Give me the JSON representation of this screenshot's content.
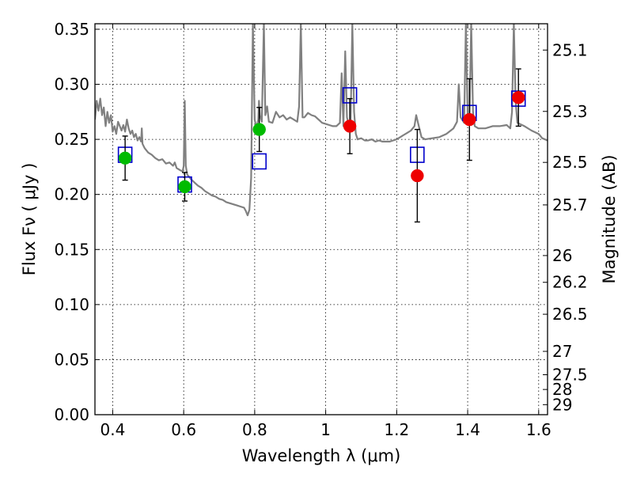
{
  "chart_data": {
    "type": "scatter",
    "title": "",
    "xlabel": "Wavelength  λ (μm)",
    "ylabel": "Flux  Fν  ( μJy )",
    "y2label": "Magnitude (AB)",
    "xlim": [
      0.35,
      1.625
    ],
    "ylim": [
      0.0,
      0.355
    ],
    "grid": true,
    "legend": "none",
    "x_ticks": [
      0.4,
      0.6,
      0.8,
      1.0,
      1.2,
      1.4,
      1.6
    ],
    "x_tick_labels": [
      "0.4",
      "0.6",
      "0.8",
      "1",
      "1.2",
      "1.4",
      "1.6"
    ],
    "y_ticks": [
      0.0,
      0.05,
      0.1,
      0.15,
      0.2,
      0.25,
      0.3,
      0.35
    ],
    "y_tick_labels": [
      "0.00",
      "0.05",
      "0.10",
      "0.15",
      "0.20",
      "0.25",
      "0.30",
      "0.35"
    ],
    "mag_ticks": [
      {
        "label": "25.1",
        "flux": 0.3311
      },
      {
        "label": "25.3",
        "flux": 0.2754
      },
      {
        "label": "25.5",
        "flux": 0.2291
      },
      {
        "label": "25.7",
        "flux": 0.1905
      },
      {
        "label": "26",
        "flux": 0.1445
      },
      {
        "label": "26.2",
        "flux": 0.1202
      },
      {
        "label": "26.5",
        "flux": 0.0912
      },
      {
        "label": "27",
        "flux": 0.0575
      },
      {
        "label": "27.5",
        "flux": 0.0363
      },
      {
        "label": "28",
        "flux": 0.0229
      },
      {
        "label": "29",
        "flux": 0.0091
      }
    ],
    "colors": {
      "template": "#808080",
      "model_box": "#0000cc",
      "obs_green": "#00bb00",
      "obs_red": "#ee0000",
      "errorbar": "#000000"
    },
    "series": [
      {
        "kind": "template-spectrum",
        "points": [
          [
            0.35,
            0.268
          ],
          [
            0.355,
            0.285
          ],
          [
            0.36,
            0.276
          ],
          [
            0.365,
            0.287
          ],
          [
            0.37,
            0.272
          ],
          [
            0.375,
            0.279
          ],
          [
            0.38,
            0.262
          ],
          [
            0.385,
            0.275
          ],
          [
            0.39,
            0.265
          ],
          [
            0.395,
            0.272
          ],
          [
            0.4,
            0.257
          ],
          [
            0.405,
            0.262
          ],
          [
            0.41,
            0.255
          ],
          [
            0.415,
            0.266
          ],
          [
            0.42,
            0.262
          ],
          [
            0.425,
            0.258
          ],
          [
            0.43,
            0.263
          ],
          [
            0.435,
            0.257
          ],
          [
            0.44,
            0.268
          ],
          [
            0.445,
            0.26
          ],
          [
            0.45,
            0.255
          ],
          [
            0.455,
            0.258
          ],
          [
            0.46,
            0.252
          ],
          [
            0.465,
            0.255
          ],
          [
            0.47,
            0.249
          ],
          [
            0.475,
            0.252
          ],
          [
            0.48,
            0.248
          ],
          [
            0.482,
            0.26
          ],
          [
            0.484,
            0.246
          ],
          [
            0.49,
            0.242
          ],
          [
            0.5,
            0.238
          ],
          [
            0.51,
            0.236
          ],
          [
            0.52,
            0.233
          ],
          [
            0.53,
            0.231
          ],
          [
            0.54,
            0.232
          ],
          [
            0.55,
            0.228
          ],
          [
            0.56,
            0.229
          ],
          [
            0.57,
            0.226
          ],
          [
            0.575,
            0.229
          ],
          [
            0.58,
            0.224
          ],
          [
            0.59,
            0.222
          ],
          [
            0.597,
            0.221
          ],
          [
            0.6,
            0.226
          ],
          [
            0.603,
            0.285
          ],
          [
            0.606,
            0.226
          ],
          [
            0.61,
            0.218
          ],
          [
            0.62,
            0.214
          ],
          [
            0.63,
            0.211
          ],
          [
            0.64,
            0.208
          ],
          [
            0.65,
            0.206
          ],
          [
            0.66,
            0.203
          ],
          [
            0.67,
            0.201
          ],
          [
            0.68,
            0.199
          ],
          [
            0.69,
            0.198
          ],
          [
            0.7,
            0.196
          ],
          [
            0.71,
            0.195
          ],
          [
            0.72,
            0.193
          ],
          [
            0.73,
            0.192
          ],
          [
            0.74,
            0.191
          ],
          [
            0.75,
            0.19
          ],
          [
            0.76,
            0.189
          ],
          [
            0.77,
            0.188
          ],
          [
            0.775,
            0.185
          ],
          [
            0.78,
            0.181
          ],
          [
            0.785,
            0.186
          ],
          [
            0.79,
            0.215
          ],
          [
            0.795,
            0.355
          ],
          [
            0.8,
            0.268
          ],
          [
            0.805,
            0.26
          ],
          [
            0.81,
            0.268
          ],
          [
            0.812,
            0.285
          ],
          [
            0.815,
            0.272
          ],
          [
            0.82,
            0.266
          ],
          [
            0.826,
            0.355
          ],
          [
            0.83,
            0.272
          ],
          [
            0.835,
            0.28
          ],
          [
            0.84,
            0.266
          ],
          [
            0.85,
            0.265
          ],
          [
            0.86,
            0.275
          ],
          [
            0.87,
            0.27
          ],
          [
            0.88,
            0.272
          ],
          [
            0.89,
            0.268
          ],
          [
            0.9,
            0.27
          ],
          [
            0.91,
            0.268
          ],
          [
            0.92,
            0.266
          ],
          [
            0.925,
            0.28
          ],
          [
            0.93,
            0.355
          ],
          [
            0.935,
            0.27
          ],
          [
            0.94,
            0.27
          ],
          [
            0.95,
            0.274
          ],
          [
            0.96,
            0.272
          ],
          [
            0.97,
            0.271
          ],
          [
            0.98,
            0.268
          ],
          [
            0.99,
            0.265
          ],
          [
            1.0,
            0.264
          ],
          [
            1.01,
            0.263
          ],
          [
            1.02,
            0.262
          ],
          [
            1.03,
            0.262
          ],
          [
            1.04,
            0.265
          ],
          [
            1.045,
            0.31
          ],
          [
            1.05,
            0.262
          ],
          [
            1.055,
            0.33
          ],
          [
            1.06,
            0.27
          ],
          [
            1.065,
            0.263
          ],
          [
            1.07,
            0.26
          ],
          [
            1.075,
            0.355
          ],
          [
            1.08,
            0.275
          ],
          [
            1.085,
            0.255
          ],
          [
            1.09,
            0.25
          ],
          [
            1.1,
            0.251
          ],
          [
            1.11,
            0.249
          ],
          [
            1.12,
            0.249
          ],
          [
            1.13,
            0.25
          ],
          [
            1.14,
            0.248
          ],
          [
            1.15,
            0.249
          ],
          [
            1.16,
            0.248
          ],
          [
            1.17,
            0.248
          ],
          [
            1.18,
            0.248
          ],
          [
            1.19,
            0.249
          ],
          [
            1.2,
            0.25
          ],
          [
            1.21,
            0.252
          ],
          [
            1.22,
            0.254
          ],
          [
            1.23,
            0.256
          ],
          [
            1.24,
            0.258
          ],
          [
            1.25,
            0.262
          ],
          [
            1.255,
            0.272
          ],
          [
            1.26,
            0.265
          ],
          [
            1.27,
            0.252
          ],
          [
            1.28,
            0.25
          ],
          [
            1.3,
            0.251
          ],
          [
            1.32,
            0.252
          ],
          [
            1.34,
            0.255
          ],
          [
            1.36,
            0.26
          ],
          [
            1.37,
            0.266
          ],
          [
            1.375,
            0.3
          ],
          [
            1.38,
            0.27
          ],
          [
            1.39,
            0.265
          ],
          [
            1.395,
            0.355
          ],
          [
            1.4,
            0.27
          ],
          [
            1.405,
            0.265
          ],
          [
            1.41,
            0.355
          ],
          [
            1.415,
            0.275
          ],
          [
            1.42,
            0.262
          ],
          [
            1.43,
            0.26
          ],
          [
            1.45,
            0.26
          ],
          [
            1.47,
            0.262
          ],
          [
            1.49,
            0.262
          ],
          [
            1.51,
            0.263
          ],
          [
            1.52,
            0.26
          ],
          [
            1.525,
            0.275
          ],
          [
            1.53,
            0.355
          ],
          [
            1.535,
            0.285
          ],
          [
            1.54,
            0.265
          ],
          [
            1.56,
            0.262
          ],
          [
            1.58,
            0.258
          ],
          [
            1.6,
            0.255
          ],
          [
            1.61,
            0.251
          ],
          [
            1.625,
            0.249
          ]
        ]
      },
      {
        "kind": "model-boxes",
        "points": [
          {
            "x": 0.435,
            "y": 0.236
          },
          {
            "x": 0.603,
            "y": 0.209
          },
          {
            "x": 0.813,
            "y": 0.23
          },
          {
            "x": 1.068,
            "y": 0.29
          },
          {
            "x": 1.258,
            "y": 0.236
          },
          {
            "x": 1.405,
            "y": 0.274
          },
          {
            "x": 1.543,
            "y": 0.287
          }
        ]
      },
      {
        "kind": "observed-points",
        "points": [
          {
            "x": 0.435,
            "y": 0.233,
            "err": 0.02,
            "color": "green"
          },
          {
            "x": 0.603,
            "y": 0.207,
            "err": 0.013,
            "color": "green"
          },
          {
            "x": 0.813,
            "y": 0.259,
            "err": 0.02,
            "color": "green"
          },
          {
            "x": 1.068,
            "y": 0.262,
            "err": 0.025,
            "color": "red"
          },
          {
            "x": 1.258,
            "y": 0.217,
            "err": 0.042,
            "color": "red"
          },
          {
            "x": 1.405,
            "y": 0.268,
            "err": 0.037,
            "color": "red"
          },
          {
            "x": 1.543,
            "y": 0.288,
            "err": 0.026,
            "color": "red"
          }
        ]
      }
    ]
  }
}
